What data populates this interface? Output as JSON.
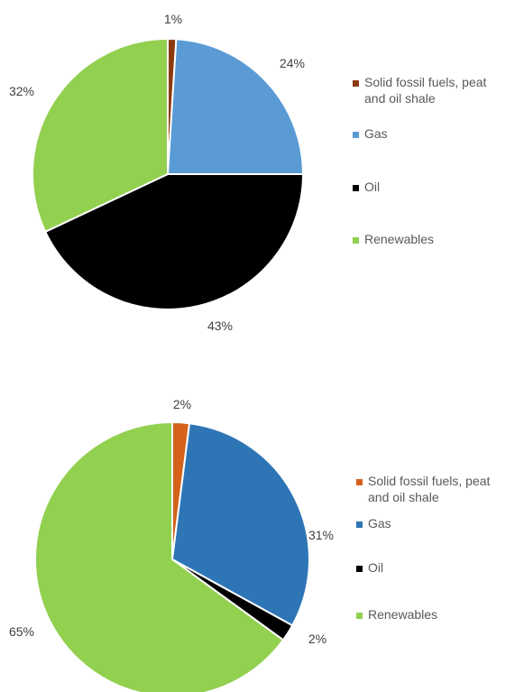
{
  "chart_data": [
    {
      "type": "pie",
      "title": "",
      "categories": [
        "Solid fossil fuels, peat and oil shale",
        "Gas",
        "Oil",
        "Renewables"
      ],
      "values": [
        1,
        24,
        43,
        32
      ],
      "value_labels": [
        "1%",
        "24%",
        "43%",
        "32%"
      ],
      "colors": [
        "#8B3A10",
        "#5B9BD5",
        "#000000",
        "#92D050"
      ],
      "legend_labels": [
        [
          "Solid fossil fuels, peat",
          "and oil shale"
        ],
        [
          "Gas"
        ],
        [
          "Oil"
        ],
        [
          "Renewables"
        ]
      ],
      "legend_position": "right",
      "start_angle_deg": 0,
      "direction": "clockwise"
    },
    {
      "type": "pie",
      "title": "",
      "categories": [
        "Solid fossil fuels, peat and oil shale",
        "Gas",
        "Oil",
        "Renewables"
      ],
      "values": [
        2,
        31,
        2,
        65
      ],
      "value_labels": [
        "2%",
        "31%",
        "2%",
        "65%"
      ],
      "colors": [
        "#D4621B",
        "#2E75B6",
        "#000000",
        "#92D050"
      ],
      "legend_labels": [
        [
          "Solid fossil fuels, peat",
          "and oil shale"
        ],
        [
          "Gas"
        ],
        [
          "Oil"
        ],
        [
          "Renewables"
        ]
      ],
      "legend_position": "right",
      "start_angle_deg": 0,
      "direction": "clockwise"
    }
  ]
}
